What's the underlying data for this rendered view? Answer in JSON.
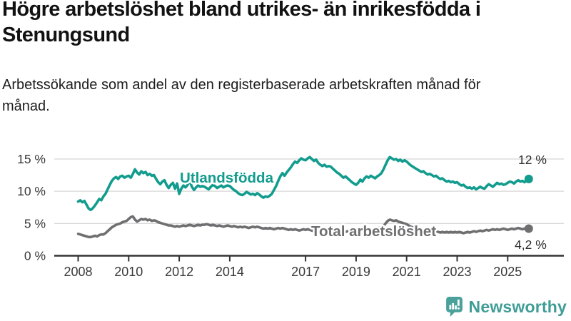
{
  "page": {
    "background": "#ffffff"
  },
  "branding": {
    "name": "Newsworthy",
    "icon": "newsworthy-speech-bubble-bar-chart-icon",
    "color": "#3f9d96",
    "icon_color": "#4aa19a"
  },
  "chart_data": {
    "type": "line",
    "title": "Högre arbetslöshet bland utrikes- än inrikesfödda i Stenungsund",
    "subtitle": "Arbetssökande som andel av den registerbaserade arbetskraften månad för månad.",
    "x_unit": "month",
    "x_start_year": 2008,
    "x_range": [
      "2008-01",
      "2025-11"
    ],
    "points_per_year": 12,
    "ylim": [
      0,
      16.5
    ],
    "grid": "horizontal-only",
    "grid_color": "#d9d9d9",
    "axis_color": "#333333",
    "tick_label_color": "#3a3a3a",
    "value_label_color": "#2b2b2b",
    "x_ticks": [
      {
        "year": 2008,
        "label": "2008"
      },
      {
        "year": 2010,
        "label": "2010"
      },
      {
        "year": 2012,
        "label": "2012"
      },
      {
        "year": 2014,
        "label": "2014"
      },
      {
        "year": 2017,
        "label": "2017"
      },
      {
        "year": 2019,
        "label": "2019"
      },
      {
        "year": 2021,
        "label": "2021"
      },
      {
        "year": 2023,
        "label": "2023"
      },
      {
        "year": 2025,
        "label": "2025"
      }
    ],
    "y_ticks": [
      {
        "value": 15,
        "label": "15 %"
      },
      {
        "value": 10,
        "label": "10 %"
      },
      {
        "value": 5,
        "label": "5 %"
      },
      {
        "value": 0,
        "label": "0 %"
      }
    ],
    "series": [
      {
        "name": "Utlandsfödda",
        "color": "#129c8e",
        "end_label": "12 %",
        "end_value": 11.9,
        "values": [
          8.4,
          8.6,
          8.3,
          8.5,
          7.9,
          7.3,
          7.1,
          7.4,
          7.8,
          8.3,
          8.8,
          8.6,
          9.2,
          9.6,
          10.3,
          11.0,
          11.6,
          12.0,
          12.2,
          11.9,
          12.3,
          12.4,
          12.1,
          12.3,
          12.4,
          12.1,
          12.7,
          13.4,
          12.9,
          12.6,
          13.1,
          12.8,
          13.0,
          12.5,
          12.7,
          12.4,
          12.5,
          11.9,
          11.4,
          11.1,
          11.5,
          11.7,
          11.0,
          10.5,
          11.0,
          11.3,
          10.4,
          11.2,
          9.6,
          10.4,
          10.9,
          10.6,
          11.0,
          11.6,
          10.7,
          10.2,
          10.6,
          10.9,
          10.7,
          10.8,
          10.7,
          10.5,
          10.3,
          10.7,
          11.0,
          10.8,
          10.5,
          10.7,
          10.9,
          10.6,
          10.8,
          10.9,
          10.8,
          10.5,
          10.2,
          10.0,
          9.7,
          9.5,
          9.4,
          9.6,
          9.9,
          9.7,
          9.5,
          9.6,
          9.4,
          9.7,
          9.5,
          9.2,
          9.0,
          9.2,
          9.1,
          9.3,
          9.6,
          10.2,
          10.8,
          11.6,
          12.3,
          12.8,
          12.4,
          12.9,
          13.3,
          13.7,
          14.2,
          14.6,
          14.4,
          14.8,
          15.1,
          14.9,
          14.8,
          15.1,
          15.3,
          15.0,
          14.7,
          14.9,
          14.4,
          14.1,
          13.9,
          14.1,
          13.8,
          13.9,
          13.8,
          13.5,
          13.2,
          12.9,
          12.7,
          12.4,
          12.1,
          12.3,
          12.0,
          11.7,
          11.4,
          11.2,
          11.0,
          11.3,
          11.8,
          11.5,
          12.0,
          12.3,
          12.1,
          12.4,
          12.2,
          12.0,
          12.3,
          12.5,
          12.8,
          13.4,
          14.1,
          14.8,
          15.3,
          15.1,
          14.9,
          15.0,
          14.7,
          14.9,
          14.6,
          14.8,
          14.6,
          14.3,
          14.0,
          13.8,
          13.6,
          13.4,
          13.2,
          13.0,
          13.1,
          12.8,
          12.6,
          12.7,
          12.5,
          12.3,
          12.4,
          12.1,
          11.9,
          12.0,
          11.7,
          11.5,
          11.6,
          11.4,
          11.5,
          11.3,
          11.4,
          11.1,
          10.9,
          11.0,
          10.7,
          10.5,
          10.6,
          10.4,
          10.6,
          10.3,
          10.5,
          10.7,
          10.5,
          10.4,
          10.8,
          11.1,
          10.9,
          10.7,
          11.0,
          11.3,
          11.1,
          11.2,
          11.0,
          11.1,
          11.3,
          11.5,
          11.4,
          11.2,
          11.5,
          11.7,
          11.5,
          11.6,
          11.4,
          11.7,
          11.9
        ]
      },
      {
        "name": "Total arbetslöshet",
        "color": "#6f6f71",
        "end_label": "4,2 %",
        "end_value": 4.2,
        "values": [
          3.4,
          3.3,
          3.2,
          3.1,
          3.0,
          2.9,
          2.9,
          3.0,
          3.1,
          3.0,
          3.2,
          3.3,
          3.3,
          3.5,
          3.8,
          4.1,
          4.4,
          4.6,
          4.8,
          4.9,
          5.0,
          5.2,
          5.3,
          5.4,
          5.7,
          6.0,
          6.1,
          5.6,
          5.3,
          5.5,
          5.7,
          5.6,
          5.7,
          5.5,
          5.6,
          5.4,
          5.5,
          5.4,
          5.2,
          5.1,
          5.0,
          4.9,
          4.8,
          4.7,
          4.7,
          4.6,
          4.5,
          4.6,
          4.5,
          4.6,
          4.7,
          4.6,
          4.7,
          4.8,
          4.7,
          4.6,
          4.7,
          4.8,
          4.7,
          4.8,
          4.8,
          4.9,
          4.8,
          4.7,
          4.8,
          4.7,
          4.6,
          4.7,
          4.6,
          4.5,
          4.6,
          4.7,
          4.6,
          4.5,
          4.6,
          4.5,
          4.4,
          4.5,
          4.4,
          4.5,
          4.4,
          4.3,
          4.4,
          4.5,
          4.4,
          4.5,
          4.4,
          4.3,
          4.2,
          4.3,
          4.2,
          4.3,
          4.2,
          4.1,
          4.2,
          4.3,
          4.2,
          4.3,
          4.2,
          4.1,
          4.0,
          4.1,
          4.0,
          4.1,
          4.0,
          3.9,
          4.0,
          4.1,
          4.0,
          4.1,
          4.0,
          3.9,
          3.8,
          3.9,
          3.8,
          3.9,
          3.8,
          3.9,
          3.8,
          3.9,
          3.8,
          3.9,
          3.8,
          3.7,
          3.8,
          3.7,
          3.8,
          3.7,
          3.8,
          3.7,
          3.8,
          3.9,
          3.8,
          3.9,
          3.8,
          3.9,
          4.0,
          3.9,
          4.0,
          4.1,
          4.0,
          4.1,
          4.2,
          4.3,
          4.4,
          4.6,
          5.0,
          5.4,
          5.6,
          5.5,
          5.4,
          5.5,
          5.3,
          5.2,
          5.1,
          5.0,
          4.9,
          4.7,
          4.5,
          4.4,
          4.2,
          4.1,
          4.0,
          3.9,
          3.9,
          3.8,
          3.8,
          3.9,
          3.8,
          3.7,
          3.8,
          3.7,
          3.6,
          3.7,
          3.6,
          3.7,
          3.6,
          3.7,
          3.6,
          3.7,
          3.6,
          3.7,
          3.6,
          3.5,
          3.6,
          3.7,
          3.6,
          3.7,
          3.8,
          3.7,
          3.8,
          3.9,
          3.8,
          3.9,
          4.0,
          3.9,
          4.0,
          4.1,
          4.0,
          4.1,
          4.0,
          4.1,
          4.2,
          4.1,
          4.0,
          4.1,
          4.2,
          4.1,
          4.2,
          4.3,
          4.2,
          4.1,
          4.2,
          4.1,
          4.2
        ]
      }
    ]
  }
}
